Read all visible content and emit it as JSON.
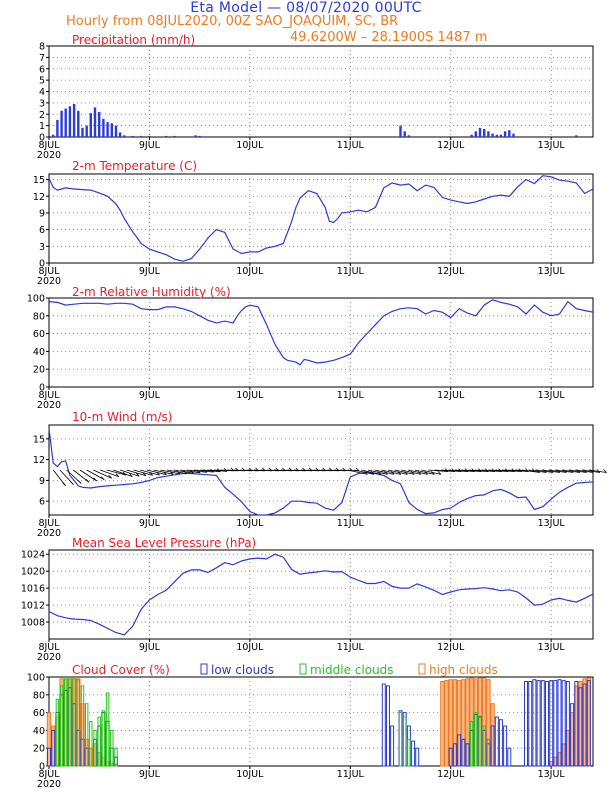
{
  "header": {
    "title": "Eta Model — 08/07/2020 00UTC",
    "subtitle": "Hourly from 08JUL2020, 00Z  SAO_JOAQUIM, SC, BR",
    "coords": "49.6200W – 28.1900S    1487   m"
  },
  "colors": {
    "title": "#2b3bd8",
    "subtitle": "#f07a1d",
    "panel_title": "#e8202a",
    "series_line": "#2b3bd8",
    "precip_bar": "#2b3bd8",
    "wind_barb": "#000000",
    "low_clouds": "#2b3bd8",
    "middle_clouds": "#2bc41e",
    "high_clouds": "#f07a1d",
    "high_clouds_fill": "#f7b98a"
  },
  "chart_data": [
    {
      "id": "precip",
      "type": "bar",
      "title": "Precipitation (mm/h)",
      "ylim": [
        0,
        8
      ],
      "yticks": [
        0,
        1,
        2,
        3,
        4,
        5,
        6,
        7,
        8
      ],
      "x_unit": "hours since 08JUL2020 00Z",
      "xlim": [
        0,
        130
      ],
      "xticks": [
        {
          "hour": 0,
          "label": "8JUL",
          "year": "2020"
        },
        {
          "hour": 24,
          "label": "9JUL"
        },
        {
          "hour": 48,
          "label": "10JUL"
        },
        {
          "hour": 72,
          "label": "11JUL"
        },
        {
          "hour": 96,
          "label": "12JUL"
        },
        {
          "hour": 120,
          "label": "13JUL"
        }
      ],
      "x": [
        1,
        2,
        3,
        4,
        5,
        6,
        7,
        8,
        9,
        10,
        11,
        12,
        13,
        14,
        15,
        16,
        17,
        18,
        20,
        22,
        24,
        28,
        30,
        35,
        36,
        84,
        85,
        86,
        101,
        102,
        103,
        104,
        105,
        106,
        107,
        108,
        109,
        110,
        111,
        126
      ],
      "values": [
        0.2,
        1.5,
        2.3,
        2.5,
        2.7,
        2.9,
        2.3,
        0.8,
        1.0,
        2.1,
        2.6,
        2.2,
        1.6,
        1.3,
        1.2,
        1.0,
        0.4,
        0.15,
        0.1,
        0.1,
        0.1,
        0.1,
        0.1,
        0.15,
        0.1,
        1.0,
        0.5,
        0.15,
        0.2,
        0.5,
        0.8,
        0.7,
        0.5,
        0.3,
        0.2,
        0.2,
        0.5,
        0.6,
        0.3,
        0.15
      ]
    },
    {
      "id": "temp",
      "type": "line",
      "title": "2-m Temperature (C)",
      "ylim": [
        0,
        16
      ],
      "yticks": [
        0,
        3,
        6,
        9,
        12,
        15
      ],
      "x": [
        0,
        1,
        2,
        4,
        6,
        8,
        10,
        12,
        14,
        16,
        17,
        18,
        19,
        20,
        21,
        22,
        24,
        26,
        28,
        30,
        32,
        34,
        36,
        38,
        40,
        42,
        44,
        46,
        48,
        50,
        52,
        54,
        56,
        58,
        59,
        60,
        62,
        64,
        66,
        67,
        68,
        69,
        70,
        72,
        74,
        76,
        78,
        80,
        82,
        84,
        86,
        88,
        90,
        92,
        94,
        96,
        98,
        100,
        102,
        104,
        106,
        108,
        110,
        112,
        114,
        116,
        118,
        120,
        122,
        124,
        126,
        128,
        130
      ],
      "values": [
        15.2,
        13.6,
        13.1,
        13.5,
        13.3,
        13.2,
        13.1,
        12.6,
        12.0,
        10.6,
        9.5,
        8.0,
        6.8,
        5.6,
        4.6,
        3.5,
        2.5,
        2.0,
        1.5,
        0.7,
        0.3,
        0.8,
        2.5,
        4.5,
        6.0,
        5.5,
        2.5,
        1.7,
        2.0,
        2.0,
        2.7,
        3.0,
        3.5,
        7.5,
        10.0,
        11.7,
        13.0,
        12.5,
        10.0,
        7.5,
        7.3,
        8.0,
        9.0,
        9.2,
        9.5,
        9.2,
        10.0,
        13.5,
        14.4,
        14.0,
        14.2,
        13.0,
        14.0,
        13.6,
        11.8,
        11.3,
        11.0,
        10.7,
        11.0,
        11.5,
        12.0,
        12.2,
        12.0,
        13.7,
        15.0,
        14.3,
        15.7,
        15.5,
        14.9,
        14.7,
        14.4,
        12.5,
        13.3
      ]
    },
    {
      "id": "rh",
      "type": "line",
      "title": "2-m Relative Humidity (%)",
      "ylim": [
        0,
        100
      ],
      "yticks": [
        0,
        20,
        40,
        60,
        80,
        100
      ],
      "x": [
        0,
        2,
        4,
        6,
        8,
        10,
        12,
        14,
        16,
        18,
        20,
        22,
        24,
        26,
        28,
        30,
        32,
        34,
        36,
        38,
        40,
        42,
        44,
        45,
        46,
        47,
        48,
        50,
        52,
        54,
        56,
        57,
        58,
        59,
        60,
        61,
        62,
        64,
        66,
        68,
        70,
        72,
        74,
        76,
        78,
        80,
        82,
        84,
        86,
        88,
        90,
        92,
        94,
        96,
        98,
        100,
        102,
        104,
        106,
        108,
        110,
        112,
        114,
        116,
        118,
        120,
        122,
        124,
        126,
        128,
        130
      ],
      "values": [
        96,
        95,
        92,
        93,
        94,
        94,
        94,
        93,
        94,
        94,
        93,
        88,
        87,
        87,
        90,
        90,
        88,
        85,
        80,
        75,
        72,
        74,
        72,
        80,
        86,
        90,
        92,
        90,
        70,
        48,
        33,
        30,
        29,
        28,
        25,
        31,
        30,
        27,
        28,
        30,
        33,
        37,
        50,
        60,
        70,
        80,
        85,
        88,
        89,
        88,
        82,
        86,
        84,
        78,
        88,
        83,
        80,
        92,
        98,
        95,
        93,
        90,
        82,
        92,
        84,
        80,
        82,
        96,
        88,
        86,
        84
      ]
    },
    {
      "id": "wind",
      "type": "line",
      "title": "10-m Wind (m/s)",
      "ylim": [
        4,
        17
      ],
      "yticks": [
        6,
        9,
        12,
        15
      ],
      "x": [
        0,
        1,
        2,
        3,
        4,
        5,
        6,
        7,
        8,
        10,
        12,
        14,
        16,
        18,
        20,
        22,
        24,
        26,
        28,
        30,
        32,
        34,
        36,
        38,
        40,
        42,
        44,
        46,
        48,
        50,
        52,
        54,
        56,
        58,
        60,
        62,
        64,
        66,
        68,
        70,
        72,
        74,
        76,
        78,
        80,
        82,
        84,
        86,
        88,
        90,
        92,
        94,
        96,
        98,
        100,
        102,
        104,
        106,
        108,
        110,
        112,
        114,
        116,
        118,
        120,
        122,
        124,
        126,
        128,
        130
      ],
      "values": [
        16.5,
        11.5,
        11.0,
        11.7,
        11.8,
        9.7,
        9.0,
        8.2,
        8.0,
        7.9,
        8.1,
        8.2,
        8.3,
        8.4,
        8.5,
        8.7,
        9.0,
        9.4,
        9.6,
        9.8,
        10.0,
        10.0,
        9.9,
        9.8,
        9.7,
        8.0,
        7.0,
        5.9,
        4.5,
        4.0,
        4.0,
        4.3,
        5.0,
        6.0,
        6.0,
        5.8,
        5.7,
        5.0,
        4.7,
        5.8,
        9.5,
        10.0,
        10.2,
        10.0,
        9.7,
        9.0,
        8.5,
        5.8,
        4.8,
        4.2,
        4.3,
        4.8,
        5.0,
        5.8,
        6.4,
        6.8,
        6.9,
        7.5,
        7.7,
        7.2,
        6.5,
        6.6,
        4.8,
        5.2,
        6.3,
        7.3,
        8.0,
        8.6,
        8.7,
        8.8
      ]
    },
    {
      "id": "mslp",
      "type": "line",
      "title": "Mean Sea Level Pressure (hPa)",
      "ylim": [
        1004,
        1025
      ],
      "yticks": [
        1008,
        1012,
        1016,
        1020,
        1024
      ],
      "x": [
        0,
        2,
        4,
        6,
        8,
        10,
        12,
        14,
        16,
        18,
        20,
        22,
        24,
        26,
        28,
        30,
        32,
        34,
        36,
        38,
        40,
        42,
        44,
        46,
        48,
        50,
        52,
        54,
        56,
        58,
        60,
        62,
        64,
        66,
        68,
        70,
        72,
        74,
        76,
        78,
        80,
        82,
        84,
        86,
        88,
        90,
        92,
        94,
        96,
        98,
        100,
        102,
        104,
        106,
        108,
        110,
        112,
        114,
        116,
        118,
        120,
        122,
        124,
        126,
        128,
        130
      ],
      "values": [
        1010.5,
        1009.5,
        1009.0,
        1008.7,
        1008.6,
        1008.4,
        1007.5,
        1006.5,
        1005.5,
        1005.0,
        1007.0,
        1011.0,
        1013.2,
        1014.5,
        1015.5,
        1017.5,
        1019.5,
        1020.3,
        1020.3,
        1019.7,
        1020.8,
        1022.0,
        1021.5,
        1022.4,
        1022.9,
        1023.1,
        1022.9,
        1024.0,
        1023.3,
        1020.4,
        1019.3,
        1019.6,
        1019.8,
        1020.1,
        1019.8,
        1019.9,
        1018.6,
        1017.8,
        1017.1,
        1017.1,
        1017.6,
        1016.4,
        1016.0,
        1016.0,
        1017.0,
        1016.3,
        1015.5,
        1014.5,
        1015.1,
        1015.6,
        1015.8,
        1015.9,
        1016.1,
        1015.8,
        1015.4,
        1015.6,
        1015.1,
        1013.7,
        1012.0,
        1012.2,
        1013.2,
        1013.6,
        1013.1,
        1012.7,
        1013.6,
        1014.6
      ]
    },
    {
      "id": "cloud",
      "type": "bar",
      "title": "Cloud Cover (%)",
      "ylim": [
        0,
        100
      ],
      "yticks": [
        0,
        20,
        40,
        60,
        80,
        100
      ],
      "legend": {
        "low": "low clouds",
        "middle": "middle clouds",
        "high": "high clouds"
      },
      "low_x": [
        0,
        1,
        2,
        3,
        4,
        5,
        6,
        7,
        8,
        9,
        11,
        12,
        13,
        14,
        15,
        16,
        80,
        81,
        82,
        84,
        85,
        86,
        87,
        88,
        96,
        97,
        98,
        99,
        100,
        101,
        102,
        103,
        104,
        105,
        106,
        107,
        108,
        109,
        110,
        114,
        115,
        116,
        117,
        118,
        119,
        120,
        121,
        122,
        123,
        124,
        125,
        126,
        127,
        128,
        129
      ],
      "low_values": [
        20,
        40,
        60,
        80,
        85,
        88,
        70,
        40,
        30,
        20,
        30,
        45,
        60,
        50,
        20,
        10,
        92,
        90,
        45,
        62,
        60,
        45,
        28,
        20,
        20,
        25,
        35,
        30,
        25,
        40,
        58,
        55,
        40,
        25,
        45,
        55,
        52,
        45,
        20,
        95,
        95,
        97,
        96,
        96,
        95,
        96,
        96,
        97,
        96,
        95,
        70,
        95,
        88,
        92,
        96
      ],
      "mid_x": [
        2,
        3,
        4,
        5,
        6,
        7,
        8,
        9,
        10,
        11,
        12,
        13,
        14,
        15,
        16,
        84,
        85,
        86,
        101,
        102,
        103,
        104,
        105
      ],
      "mid_values": [
        75,
        90,
        98,
        98,
        98,
        97,
        90,
        70,
        50,
        40,
        55,
        62,
        82,
        40,
        20,
        60,
        55,
        30,
        50,
        60,
        56,
        45,
        30
      ],
      "high_x": [
        0,
        1,
        2,
        3,
        4,
        5,
        6,
        7,
        8,
        9,
        10,
        11,
        12,
        13,
        14,
        15,
        16,
        94,
        95,
        96,
        97,
        98,
        99,
        100,
        101,
        102,
        103,
        104,
        105,
        106,
        120,
        121,
        122,
        123,
        124,
        125,
        126,
        127,
        128,
        129
      ],
      "high_values": [
        60,
        45,
        55,
        98,
        98,
        98,
        98,
        98,
        70,
        30,
        20,
        25,
        15,
        10,
        5,
        3,
        2,
        95,
        96,
        97,
        97,
        96,
        97,
        98,
        99,
        98,
        99,
        99,
        97,
        70,
        5,
        10,
        15,
        25,
        40,
        60,
        90,
        95,
        98,
        99
      ]
    }
  ]
}
